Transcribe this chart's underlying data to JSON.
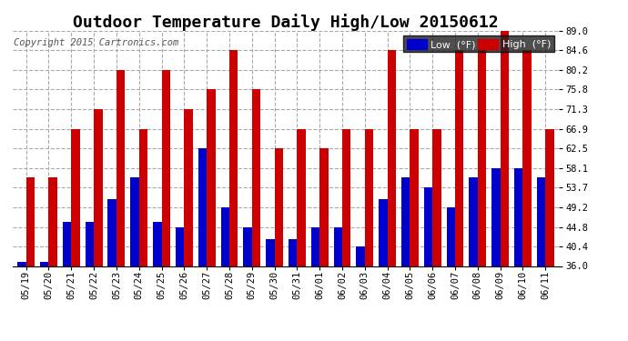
{
  "title": "Outdoor Temperature Daily High/Low 20150612",
  "copyright": "Copyright 2015 Cartronics.com",
  "categories": [
    "05/19",
    "05/20",
    "05/21",
    "05/22",
    "05/23",
    "05/24",
    "05/25",
    "05/26",
    "05/27",
    "05/28",
    "05/29",
    "05/30",
    "05/31",
    "06/01",
    "06/02",
    "06/03",
    "06/04",
    "06/05",
    "06/06",
    "06/07",
    "06/08",
    "06/09",
    "06/10",
    "06/11"
  ],
  "low_values": [
    37.0,
    37.0,
    46.0,
    46.0,
    51.0,
    55.9,
    46.0,
    44.8,
    62.5,
    49.2,
    44.8,
    42.0,
    42.0,
    44.8,
    44.8,
    40.4,
    51.0,
    55.9,
    53.7,
    49.2,
    55.9,
    58.1,
    58.1,
    55.9
  ],
  "high_values": [
    55.9,
    55.9,
    66.9,
    71.3,
    80.2,
    66.9,
    80.2,
    71.3,
    75.8,
    84.6,
    75.8,
    62.5,
    66.9,
    62.5,
    66.9,
    66.9,
    84.6,
    66.9,
    66.9,
    84.6,
    84.6,
    89.0,
    84.6,
    66.9
  ],
  "low_color": "#0000CC",
  "high_color": "#CC0000",
  "ymin": 36.0,
  "ylim": [
    36.0,
    89.0
  ],
  "yticks": [
    36.0,
    40.4,
    44.8,
    49.2,
    53.7,
    58.1,
    62.5,
    66.9,
    71.3,
    75.8,
    80.2,
    84.6,
    89.0
  ],
  "legend_low_label": "Low  (°F)",
  "legend_high_label": "High  (°F)",
  "title_fontsize": 13,
  "copyright_fontsize": 7.5,
  "tick_fontsize": 7.5,
  "bar_width": 0.38,
  "grid_color": "#aaaaaa",
  "grid_linestyle": "--"
}
